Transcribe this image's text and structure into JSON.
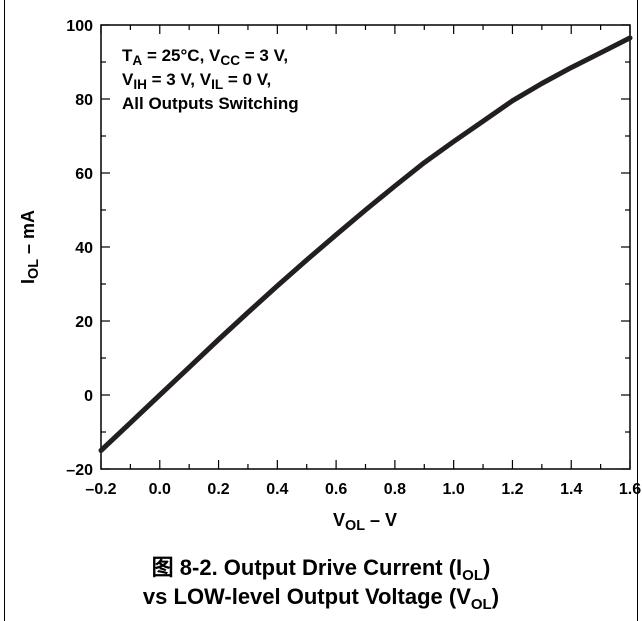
{
  "chart_data": {
    "type": "line",
    "xlabel_main": "V",
    "xlabel_sub": "OL",
    "xlabel_rest": " – V",
    "ylabel_main": "I",
    "ylabel_sub": "OL",
    "ylabel_rest": " – mA",
    "xlim": [
      -0.2,
      1.6
    ],
    "ylim": [
      -20,
      100
    ],
    "x_ticks": [
      -0.2,
      0.0,
      0.2,
      0.4,
      0.6,
      0.8,
      1.0,
      1.2,
      1.4,
      1.6
    ],
    "x_tick_labels": [
      "–0.2",
      "0.0",
      "0.2",
      "0.4",
      "0.6",
      "0.8",
      "1.0",
      "1.2",
      "1.4",
      "1.6"
    ],
    "y_ticks": [
      -20,
      0,
      20,
      40,
      60,
      80,
      100
    ],
    "y_tick_labels": [
      "–20",
      "0",
      "20",
      "40",
      "60",
      "80",
      "100"
    ],
    "grid": false,
    "line_color": "#231f20",
    "series": [
      {
        "x": [
          -0.2,
          -0.1,
          0.0,
          0.1,
          0.2,
          0.3,
          0.4,
          0.5,
          0.6,
          0.7,
          0.8,
          0.9,
          1.0,
          1.1,
          1.2,
          1.3,
          1.4,
          1.5,
          1.6
        ],
        "y": [
          -15,
          -7.5,
          0,
          7.5,
          15,
          22.3,
          29.5,
          36.5,
          43.3,
          50,
          56.5,
          62.8,
          68.5,
          74,
          79.5,
          84.2,
          88.5,
          92.5,
          96.5
        ]
      }
    ],
    "annotation": [
      [
        {
          "t": "T"
        },
        {
          "t": "A",
          "sub": true
        },
        {
          "t": " = 25°C, V"
        },
        {
          "t": "CC",
          "sub": true
        },
        {
          "t": " = 3 V,"
        }
      ],
      [
        {
          "t": "V"
        },
        {
          "t": "IH",
          "sub": true
        },
        {
          "t": " = 3 V, V"
        },
        {
          "t": "IL",
          "sub": true
        },
        {
          "t": " = 0 V,"
        }
      ],
      [
        {
          "t": "All Outputs Switching"
        }
      ]
    ]
  },
  "caption": {
    "line1_prefix": "图 8-2. Output Drive Current (I",
    "line1_sub": "OL",
    "line1_suffix": ")",
    "line2_prefix": "vs LOW-level Output Voltage (V",
    "line2_sub": "OL",
    "line2_suffix": ")"
  }
}
